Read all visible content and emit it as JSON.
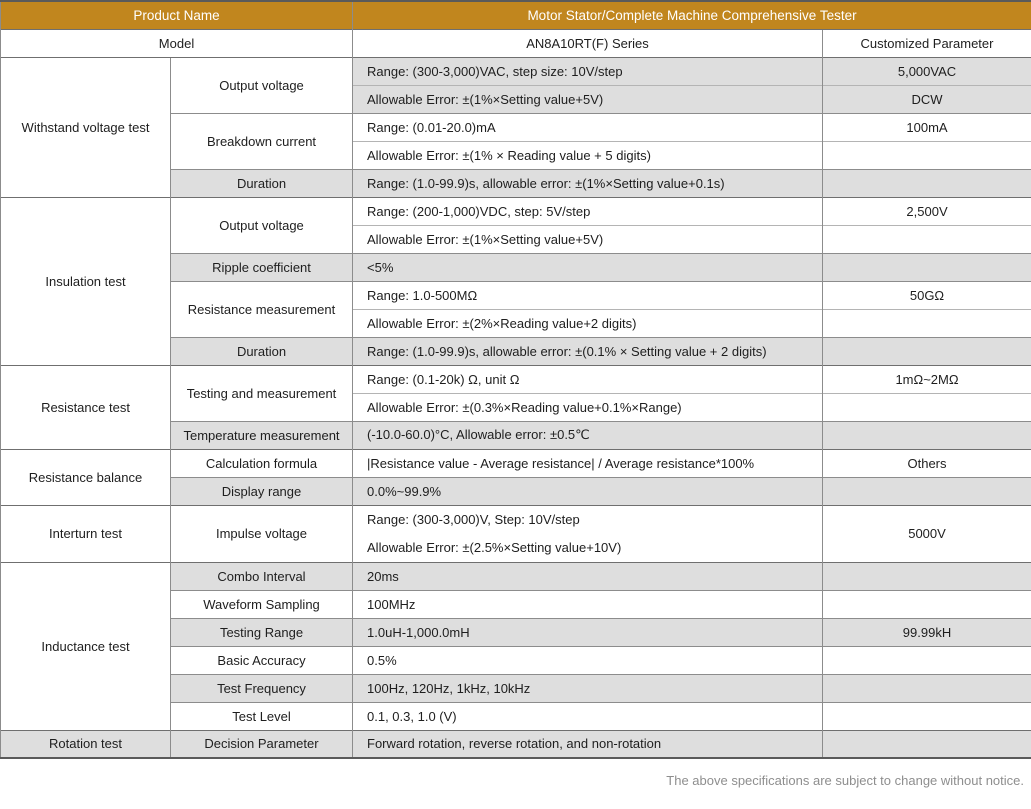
{
  "colors": {
    "header_bg": "#C1861E",
    "header_text": "#FFFFFF",
    "shaded_row_bg": "#DEDEDE",
    "grid_line": "#8C8C8C",
    "section_line": "#6F6F6F",
    "body_text": "#1E1E1E",
    "footer_text": "#8E8E8E"
  },
  "header": {
    "product_label": "Product Name",
    "product_value": "Motor Stator/Complete Machine Comprehensive Tester",
    "model_label": "Model",
    "model_value": "AN8A10RT(F) Series",
    "customized_label": "Customized Parameter"
  },
  "sections": [
    {
      "category": "Withstand voltage test",
      "groups": [
        {
          "label": "Output voltage",
          "rows": [
            {
              "spec": "Range: (300-3,000)VAC, step size: 10V/step",
              "custom": "5,000VAC"
            },
            {
              "spec": "Allowable Error: ±(1%×Setting value+5V)",
              "custom": "DCW"
            }
          ]
        },
        {
          "label": "Breakdown current",
          "rows": [
            {
              "spec": "Range: (0.01-20.0)mA",
              "custom": "100mA"
            },
            {
              "spec": "Allowable Error: ±(1% × Reading value + 5 digits)",
              "custom": ""
            }
          ]
        },
        {
          "label": "Duration",
          "rows": [
            {
              "spec": "Range: (1.0-99.9)s, allowable error: ±(1%×Setting value+0.1s)",
              "custom": ""
            }
          ]
        }
      ]
    },
    {
      "category": "Insulation test",
      "groups": [
        {
          "label": "Output voltage",
          "rows": [
            {
              "spec": "Range: (200-1,000)VDC, step: 5V/step",
              "custom": "2,500V"
            },
            {
              "spec": "Allowable Error: ±(1%×Setting value+5V)",
              "custom": ""
            }
          ]
        },
        {
          "label": "Ripple coefficient",
          "rows": [
            {
              "spec": "<5%",
              "custom": ""
            }
          ]
        },
        {
          "label": "Resistance measurement",
          "rows": [
            {
              "spec": "Range: 1.0-500MΩ",
              "custom": "50GΩ"
            },
            {
              "spec": "Allowable Error: ±(2%×Reading value+2 digits)",
              "custom": ""
            }
          ]
        },
        {
          "label": "Duration",
          "rows": [
            {
              "spec": "Range: (1.0-99.9)s, allowable error: ±(0.1% × Setting value + 2 digits)",
              "custom": ""
            }
          ]
        }
      ]
    },
    {
      "category": "Resistance test",
      "groups": [
        {
          "label": "Testing and measurement",
          "rows": [
            {
              "spec": "Range: (0.1-20k) Ω, unit Ω",
              "custom": "1mΩ~2MΩ"
            },
            {
              "spec": "Allowable Error: ±(0.3%×Reading value+0.1%×Range)",
              "custom": ""
            }
          ]
        },
        {
          "label": "Temperature measurement",
          "rows": [
            {
              "spec": "(-10.0-60.0)°C, Allowable error: ±0.5℃",
              "custom": ""
            }
          ]
        }
      ]
    },
    {
      "category": "Resistance balance",
      "groups": [
        {
          "label": "Calculation formula",
          "rows": [
            {
              "spec": "|Resistance value - Average resistance| / Average resistance*100%",
              "custom": "Others"
            }
          ]
        },
        {
          "label": "Display range",
          "rows": [
            {
              "spec": "0.0%~99.9%",
              "custom": ""
            }
          ]
        }
      ]
    },
    {
      "category": "Interturn test",
      "groups": [
        {
          "label": "Impulse voltage",
          "rows": [
            {
              "line1": "Range: (300-3,000)V, Step: 10V/step",
              "line2": "Allowable Error: ±(2.5%×Setting value+10V)",
              "custom": "5000V"
            }
          ]
        }
      ]
    },
    {
      "category": "Inductance test",
      "groups": [
        {
          "label": "Combo Interval",
          "rows": [
            {
              "spec": "20ms",
              "custom": ""
            }
          ]
        },
        {
          "label": "Waveform Sampling",
          "rows": [
            {
              "spec": "100MHz",
              "custom": ""
            }
          ]
        },
        {
          "label": "Testing Range",
          "rows": [
            {
              "spec": "1.0uH-1,000.0mH",
              "custom": "99.99kH"
            }
          ]
        },
        {
          "label": "Basic Accuracy",
          "rows": [
            {
              "spec": "0.5%",
              "custom": ""
            }
          ]
        },
        {
          "label": "Test Frequency",
          "rows": [
            {
              "spec": "100Hz, 120Hz, 1kHz, 10kHz",
              "custom": ""
            }
          ]
        },
        {
          "label": "Test Level",
          "rows": [
            {
              "spec": "0.1, 0.3, 1.0 (V)",
              "custom": ""
            }
          ]
        }
      ]
    },
    {
      "category": "Rotation test",
      "groups": [
        {
          "label": "Decision Parameter",
          "rows": [
            {
              "spec": "Forward rotation, reverse rotation, and non-rotation",
              "custom": ""
            }
          ]
        }
      ]
    }
  ],
  "footer": {
    "note": "The above specifications are subject to change without notice."
  }
}
